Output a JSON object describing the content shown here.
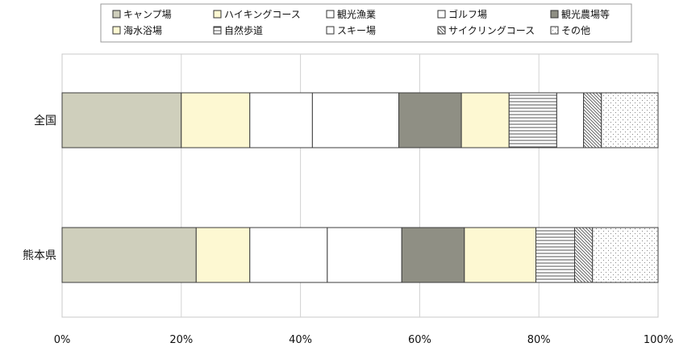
{
  "chart_data": {
    "type": "bar",
    "orientation": "horizontal",
    "stacked": "percent",
    "title": "",
    "xlabel": "",
    "ylabel": "",
    "xlim": [
      0,
      100
    ],
    "grid": true,
    "legend_position": "top",
    "categories": [
      "全国",
      "熊本県"
    ],
    "x_ticks": [
      "0%",
      "20%",
      "40%",
      "60%",
      "80%",
      "100%"
    ],
    "series": [
      {
        "name": "キャンプ場",
        "values": [
          20.0,
          22.5
        ],
        "fill": "#cfcfbc",
        "pattern": "none"
      },
      {
        "name": "ハイキングコース",
        "values": [
          11.5,
          9.0
        ],
        "fill": "#fdf8d2",
        "pattern": "none"
      },
      {
        "name": "観光漁業",
        "values": [
          10.5,
          13.0
        ],
        "fill": "#ffffff",
        "pattern": "none"
      },
      {
        "name": "ゴルフ場",
        "values": [
          14.5,
          12.5
        ],
        "fill": "#ffffff",
        "pattern": "none"
      },
      {
        "name": "観光農場等",
        "values": [
          10.5,
          10.5
        ],
        "fill": "#8f8f84",
        "pattern": "none"
      },
      {
        "name": "海水浴場",
        "values": [
          8.0,
          12.0
        ],
        "fill": "#fdf8d2",
        "pattern": "none"
      },
      {
        "name": "自然歩道",
        "values": [
          8.0,
          6.5
        ],
        "fill": "#ffffff",
        "pattern": "hlines"
      },
      {
        "name": "スキー場",
        "values": [
          4.5,
          0.0
        ],
        "fill": "#ffffff",
        "pattern": "none"
      },
      {
        "name": "サイクリングコース",
        "values": [
          3.0,
          3.0
        ],
        "fill": "#ffffff",
        "pattern": "diag"
      },
      {
        "name": "その他",
        "values": [
          9.5,
          11.0
        ],
        "fill": "#ffffff",
        "pattern": "dots"
      }
    ]
  }
}
